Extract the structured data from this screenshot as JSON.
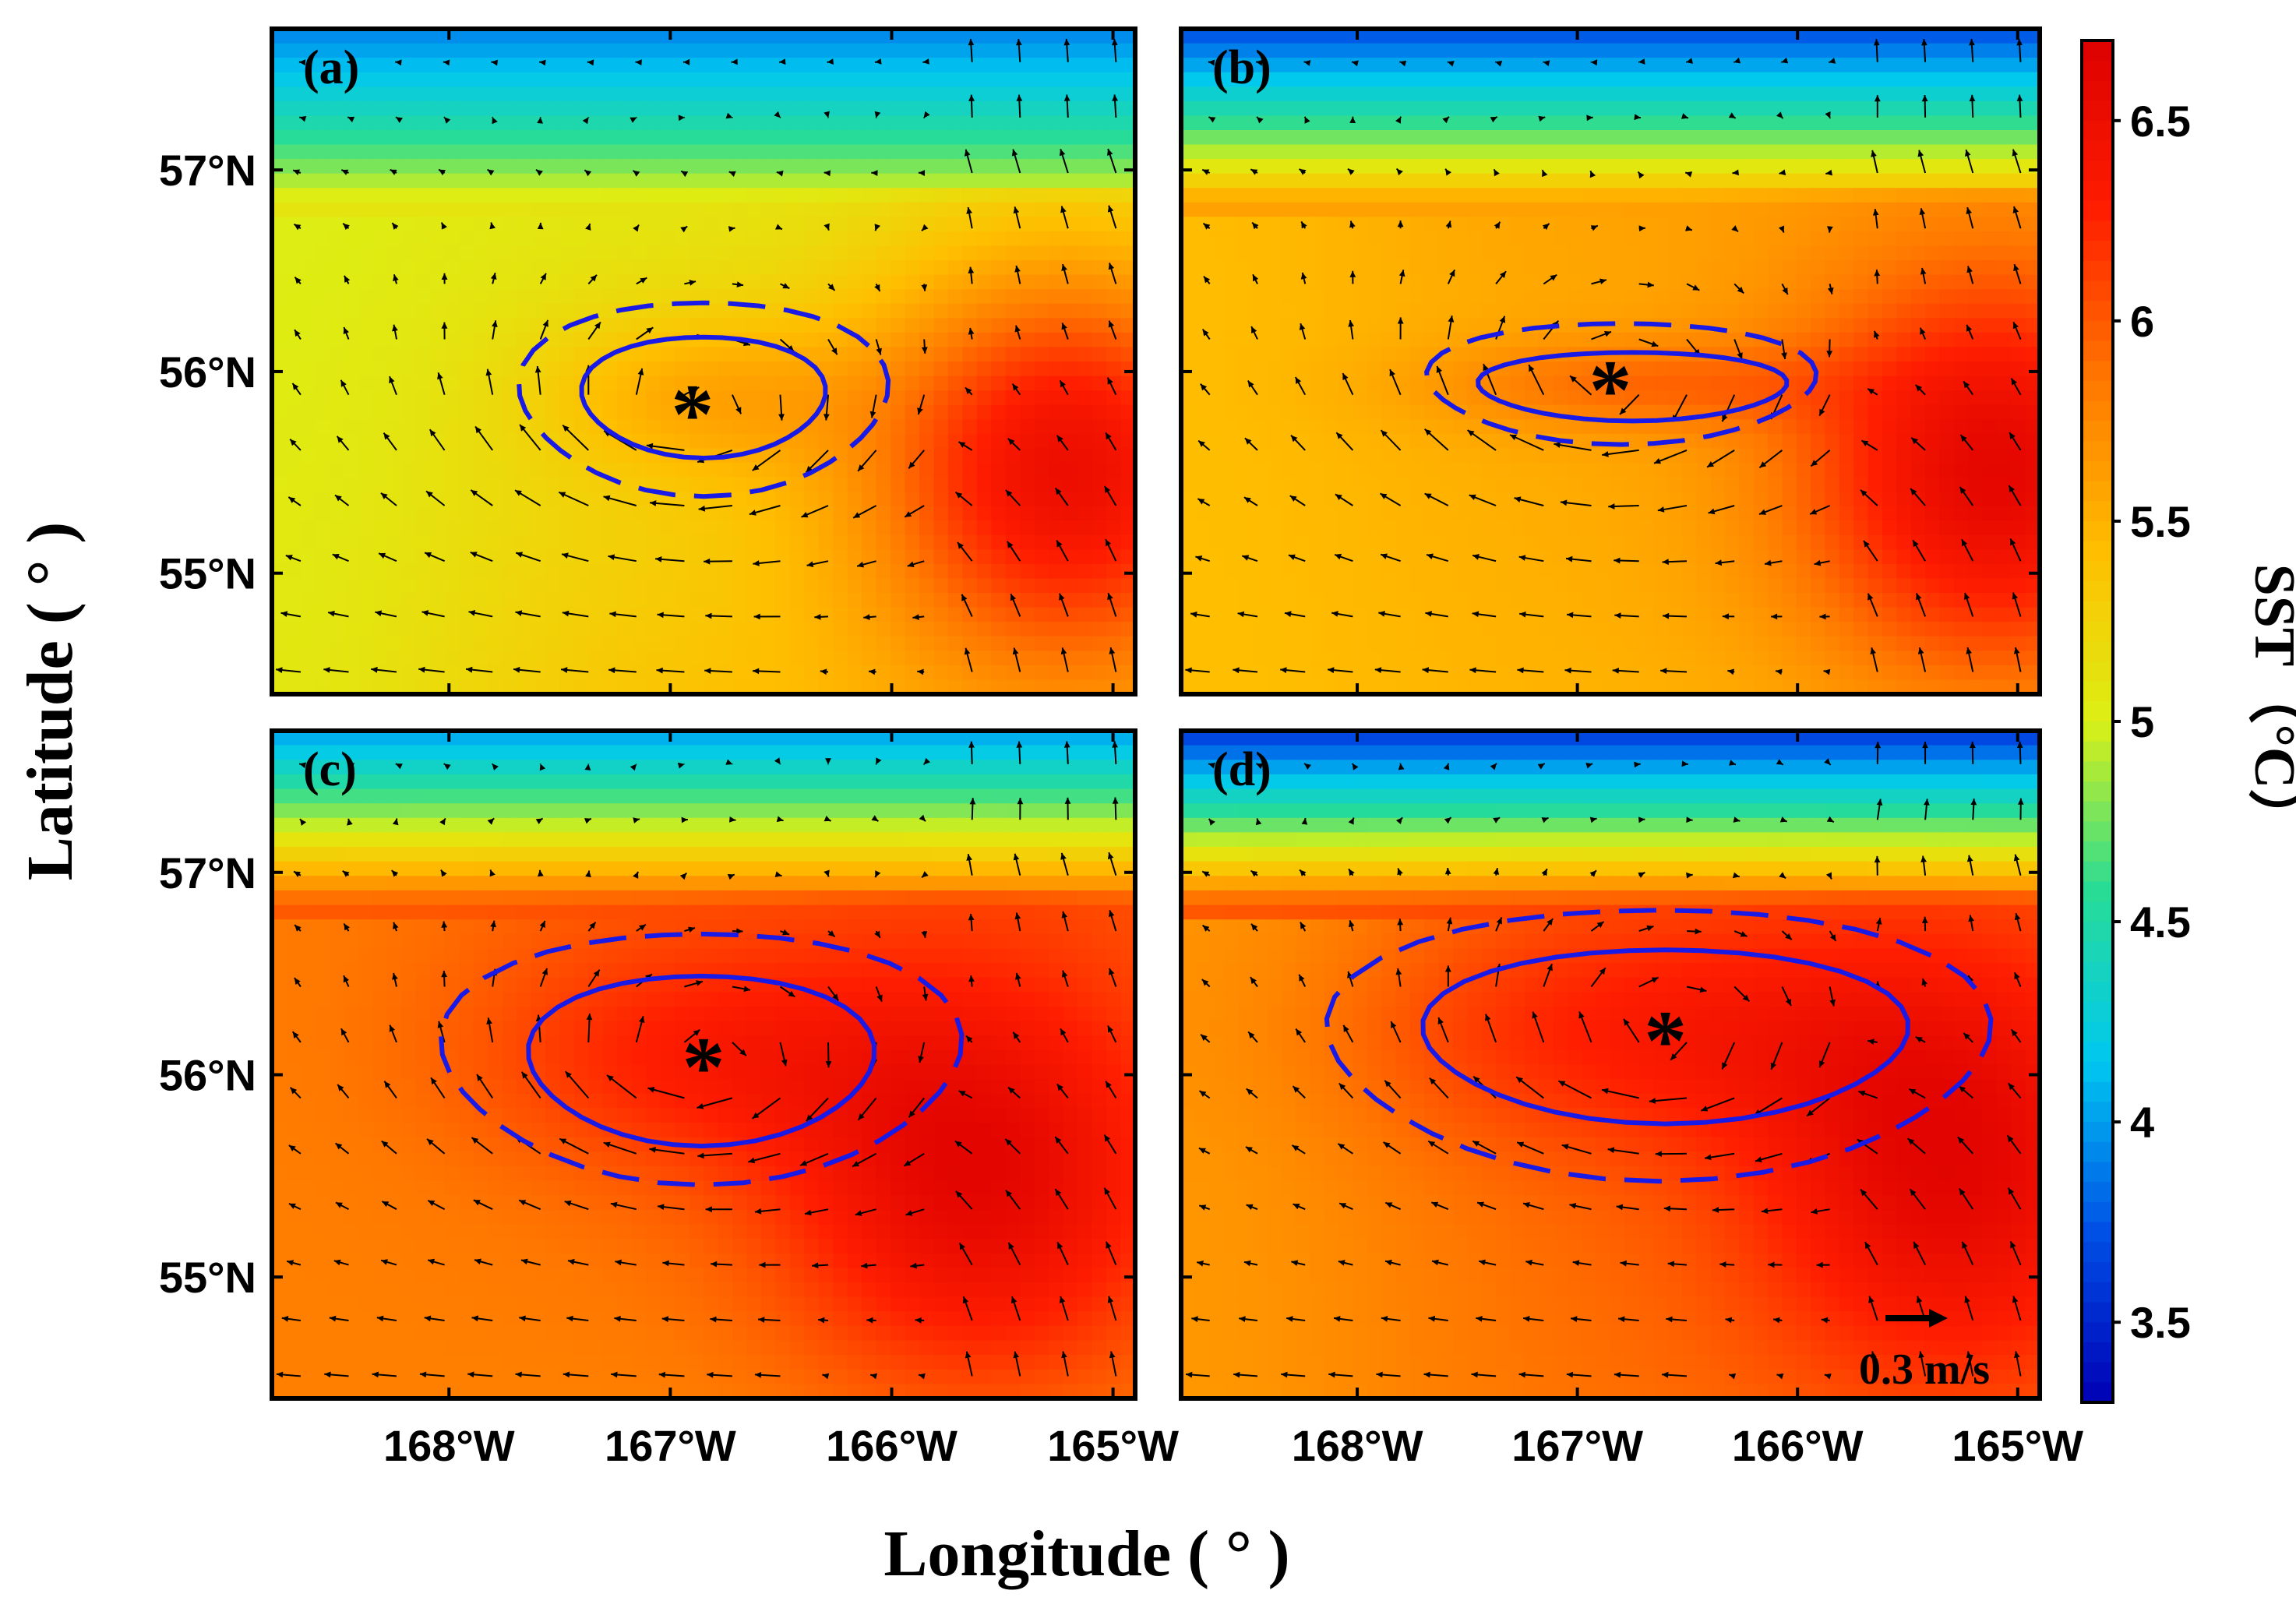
{
  "figure": {
    "x_axis_title": "Longitude ( ° )",
    "y_axis_title": "Latitude ( ° )",
    "colorbar_title": "SST（°C）",
    "colorbar_range": [
      3.3,
      6.7
    ],
    "colorbar_ticks": [
      {
        "value": 3.5,
        "label": "3.5"
      },
      {
        "value": 4.0,
        "label": "4"
      },
      {
        "value": 4.5,
        "label": "4.5"
      },
      {
        "value": 5.0,
        "label": "5"
      },
      {
        "value": 5.5,
        "label": "5.5"
      },
      {
        "value": 6.0,
        "label": "6"
      },
      {
        "value": 6.5,
        "label": "6.5"
      }
    ],
    "lon_ticks": [
      {
        "value": -168,
        "label": "168°W"
      },
      {
        "value": -167,
        "label": "167°W"
      },
      {
        "value": -166,
        "label": "166°W"
      },
      {
        "value": -165,
        "label": "165°W"
      }
    ],
    "lat_ticks": [
      {
        "value": 57,
        "label": "57°N"
      },
      {
        "value": 56,
        "label": "56°N"
      },
      {
        "value": 55,
        "label": "55°N"
      }
    ],
    "lon_range": [
      -168.8,
      -164.9
    ],
    "lat_range": [
      54.4,
      57.7
    ],
    "vector_scale_label": "0.3 m/s",
    "vector_scale_speed": 0.3,
    "colors": {
      "contour": "#1a1ae6",
      "arrow": "#000000",
      "colormap": [
        "#0000b4",
        "#0050e6",
        "#00c8f0",
        "#28dc96",
        "#dcf014",
        "#ffbe00",
        "#ff7800",
        "#ff1e00",
        "#dc0000"
      ]
    }
  },
  "panels": [
    {
      "label": "(a)",
      "eddy_center": {
        "lon": -166.9,
        "lat": 55.8
      },
      "inner_contour": {
        "lon": -166.85,
        "lat": 55.88,
        "rlon": 0.55,
        "rlat": 0.3
      },
      "outer_contour": {
        "lon": -166.85,
        "lat": 55.88,
        "rlon": 0.83,
        "rlat": 0.48
      },
      "sst": {
        "north": 3.9,
        "ridge": 5.1,
        "south": 5.4,
        "east_warm": 6.5,
        "east_lon": -165.2,
        "west_cool": 5.0
      }
    },
    {
      "label": "(b)",
      "eddy_center": {
        "lon": -166.85,
        "lat": 55.92
      },
      "inner_contour": {
        "lon": -166.75,
        "lat": 55.93,
        "rlon": 0.7,
        "rlat": 0.17
      },
      "outer_contour": {
        "lon": -166.8,
        "lat": 55.95,
        "rlon": 0.88,
        "rlat": 0.3
      },
      "sst": {
        "north": 3.7,
        "ridge": 5.6,
        "south": 5.5,
        "east_warm": 6.6,
        "east_lon": -165.1,
        "west_cool": 5.4
      }
    },
    {
      "label": "(c)",
      "eddy_center": {
        "lon": -166.85,
        "lat": 56.05
      },
      "inner_contour": {
        "lon": -166.86,
        "lat": 56.08,
        "rlon": 0.78,
        "rlat": 0.42
      },
      "outer_contour": {
        "lon": -166.86,
        "lat": 56.1,
        "rlon": 1.17,
        "rlat": 0.62
      },
      "sst": {
        "north": 4.0,
        "ridge": 6.0,
        "south": 5.8,
        "east_warm": 6.6,
        "east_lon": -165.6,
        "west_cool": 5.8
      }
    },
    {
      "label": "(d)",
      "eddy_center": {
        "lon": -166.6,
        "lat": 56.18
      },
      "inner_contour": {
        "lon": -166.6,
        "lat": 56.2,
        "rlon": 1.1,
        "rlat": 0.43
      },
      "outer_contour": {
        "lon": -166.63,
        "lat": 56.17,
        "rlon": 1.5,
        "rlat": 0.67
      },
      "sst": {
        "north": 3.6,
        "ridge": 6.0,
        "south": 5.9,
        "east_warm": 6.6,
        "east_lon": -165.3,
        "west_cool": 5.6
      }
    }
  ]
}
